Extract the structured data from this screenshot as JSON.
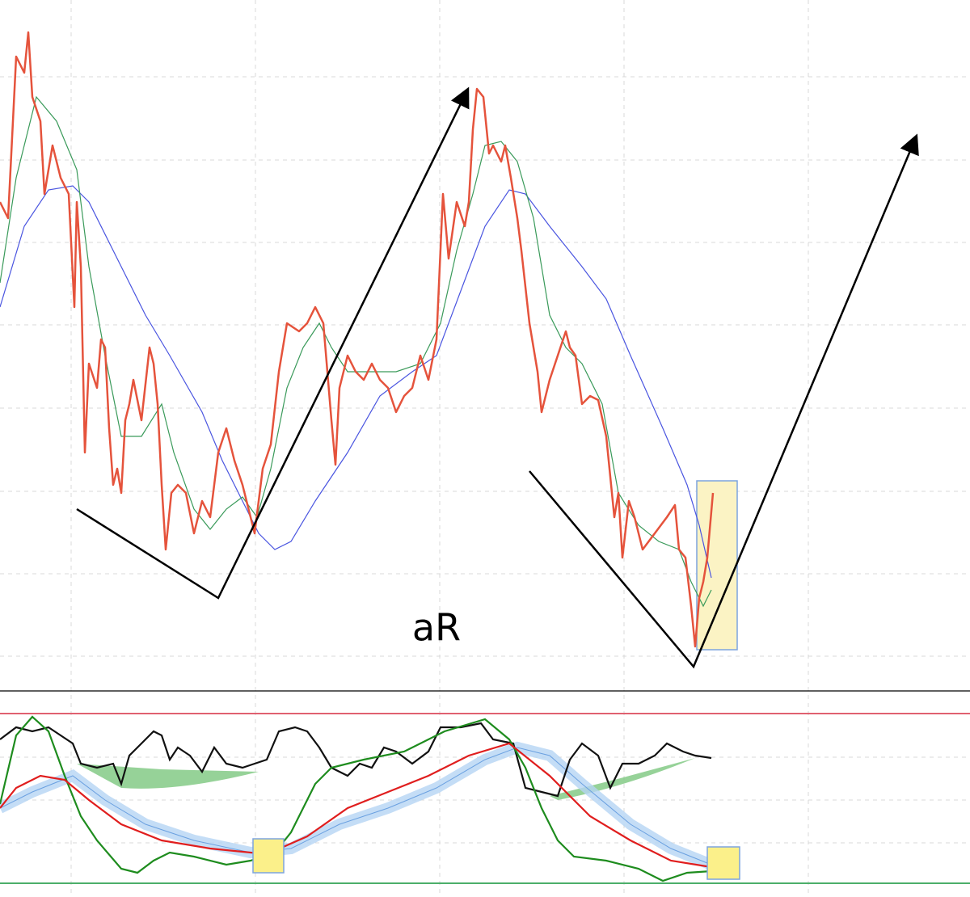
{
  "chart_data": {
    "type": "line",
    "annotation": "aR"
  }
}
